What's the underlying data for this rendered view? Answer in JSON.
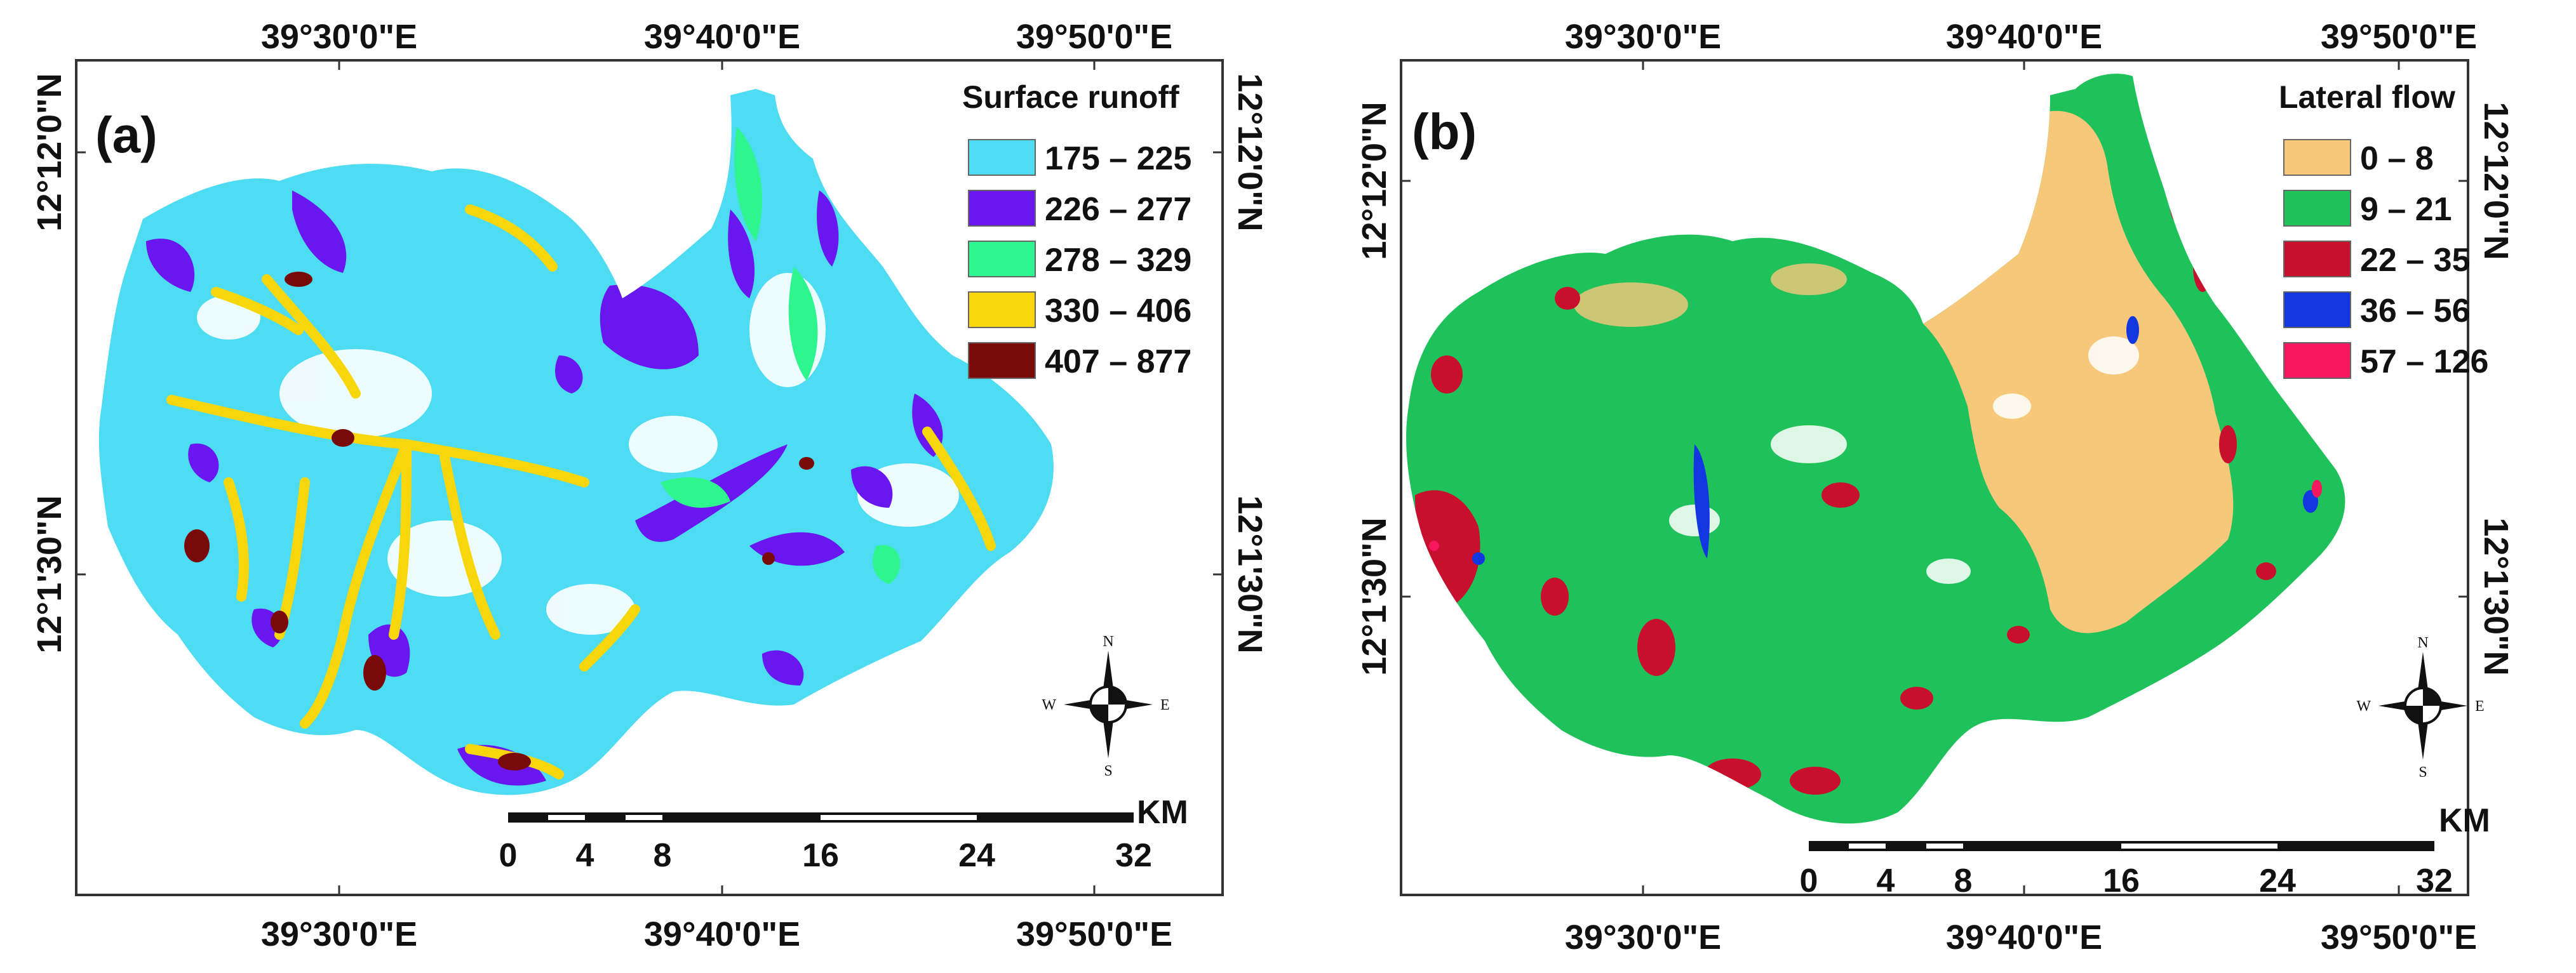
{
  "figure": {
    "panels": [
      {
        "id": "(a)",
        "legend": {
          "title": "Surface runoff",
          "items": [
            {
              "label": "175 – 225",
              "color": "#4ddcf2"
            },
            {
              "label": "226 – 277",
              "color": "#6a16f0"
            },
            {
              "label": "278 – 329",
              "color": "#2ff58e"
            },
            {
              "label": "330 – 406",
              "color": "#f8d60c"
            },
            {
              "label": "407 – 877",
              "color": "#7a0a0a"
            }
          ]
        },
        "lon_ticks": [
          "39°30'0\"E",
          "39°40'0\"E",
          "39°50'0\"E"
        ],
        "lat_ticks": [
          "12°12'0\"N",
          "12°1'30\"N"
        ],
        "scale": {
          "unit": "KM",
          "ticks": [
            "0",
            "4",
            "8",
            "16",
            "24",
            "32"
          ]
        },
        "compass": {
          "n": "N",
          "s": "S",
          "e": "E",
          "w": "W"
        }
      },
      {
        "id": "(b)",
        "legend": {
          "title": "Lateral flow",
          "items": [
            {
              "label": "0 – 8",
              "color": "#f8c87a"
            },
            {
              "label": "9 – 21",
              "color": "#1fc25a"
            },
            {
              "label": "22 – 35",
              "color": "#c8102e"
            },
            {
              "label": "36 – 56",
              "color": "#1236e0"
            },
            {
              "label": "57 – 126",
              "color": "#f5185e"
            }
          ]
        },
        "lon_ticks": [
          "39°30'0\"E",
          "39°40'0\"E",
          "39°50'0\"E"
        ],
        "lat_ticks": [
          "12°12'0\"N",
          "12°1'30\"N"
        ],
        "scale": {
          "unit": "KM",
          "ticks": [
            "0",
            "4",
            "8",
            "16",
            "24",
            "32"
          ]
        },
        "compass": {
          "n": "N",
          "s": "S",
          "e": "E",
          "w": "W"
        }
      }
    ]
  }
}
